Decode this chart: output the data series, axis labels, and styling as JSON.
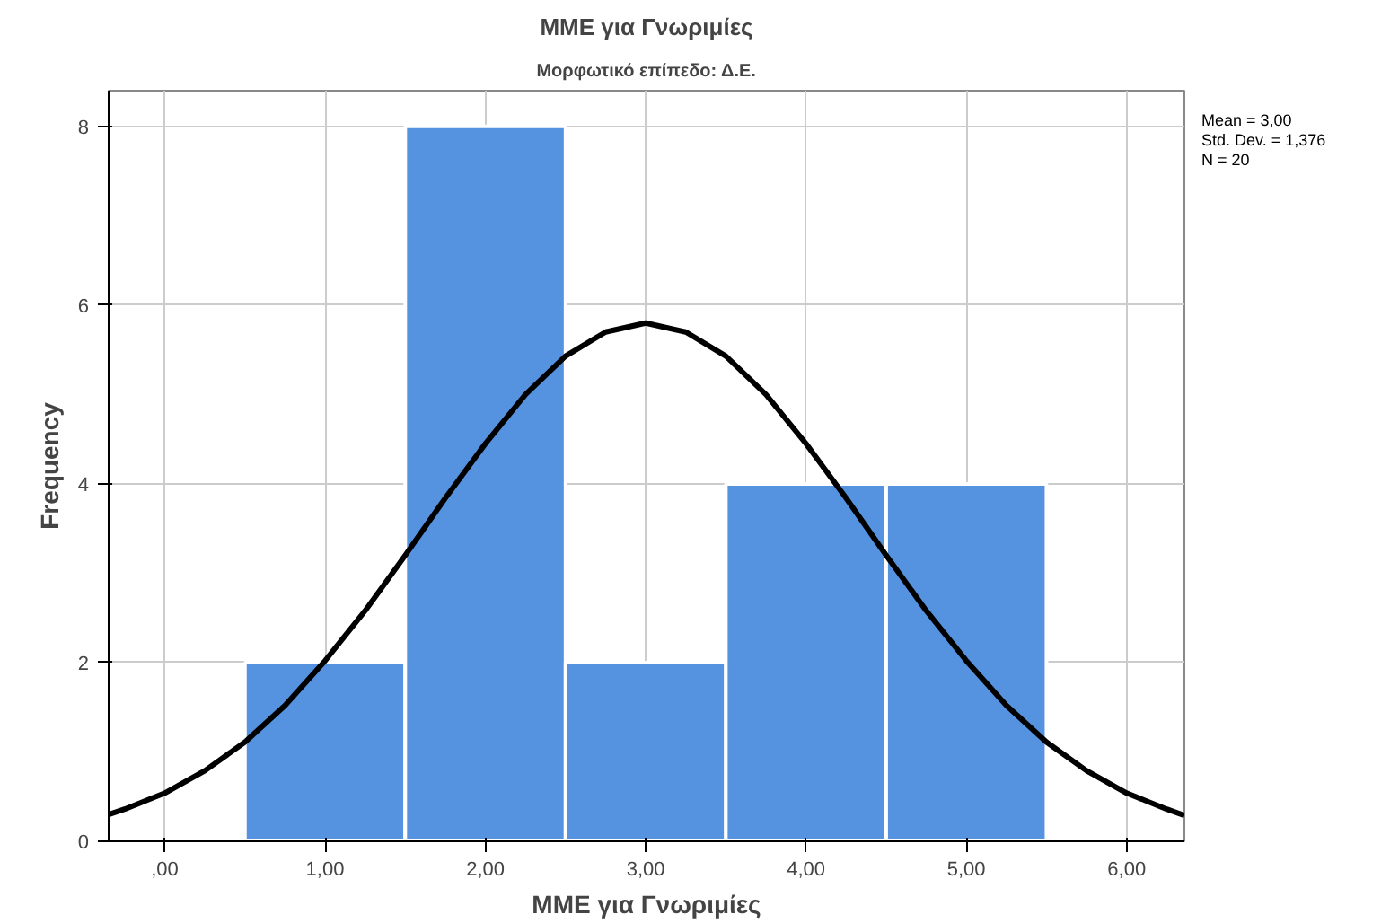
{
  "chart_data": {
    "type": "histogram",
    "title": "ΜΜΕ για Γνωριμίες",
    "subtitle": "Μορφωτικό επίπεδο: Δ.Ε.",
    "xlabel": "ΜΜΕ για Γνωριμίες",
    "ylabel": "Frequency",
    "bins": [
      0.5,
      1.5,
      2.5,
      3.5,
      4.5,
      5.5
    ],
    "values": [
      2,
      8,
      2,
      4,
      4
    ],
    "color": "#5592e0",
    "series": [
      {
        "type": "line",
        "color": "#000000",
        "x": [
          -0.35,
          -0.25,
          0,
          0.25,
          0.5,
          0.75,
          1,
          1.25,
          1.5,
          1.75,
          2,
          2.25,
          2.5,
          2.75,
          3,
          3.25,
          3.5,
          3.75,
          4,
          4.25,
          4.5,
          4.75,
          5,
          5.25,
          5.5,
          5.75,
          6,
          6.25,
          6.36
        ],
        "values": [
          0.3,
          0.36,
          0.54,
          0.79,
          1.11,
          1.52,
          2.02,
          2.58,
          3.2,
          3.84,
          4.45,
          5.0,
          5.43,
          5.7,
          5.8,
          5.7,
          5.43,
          5.0,
          4.45,
          3.84,
          3.2,
          2.58,
          2.02,
          1.52,
          1.11,
          0.79,
          0.54,
          0.36,
          0.29
        ]
      }
    ],
    "xlim": [
      -0.35,
      6.36
    ],
    "ylim": [
      0,
      8.4
    ],
    "xticks": [
      {
        "value": 0,
        "label": ",00"
      },
      {
        "value": 1,
        "label": "1,00"
      },
      {
        "value": 2,
        "label": "2,00"
      },
      {
        "value": 3,
        "label": "3,00"
      },
      {
        "value": 4,
        "label": "4,00"
      },
      {
        "value": 5,
        "label": "5,00"
      },
      {
        "value": 6,
        "label": "6,00"
      }
    ],
    "yticks": [
      0,
      2,
      4,
      6,
      8
    ],
    "grid": true,
    "annotations": [
      "Mean = 3,00",
      "Std. Dev. = 1,376",
      "N = 20"
    ]
  }
}
